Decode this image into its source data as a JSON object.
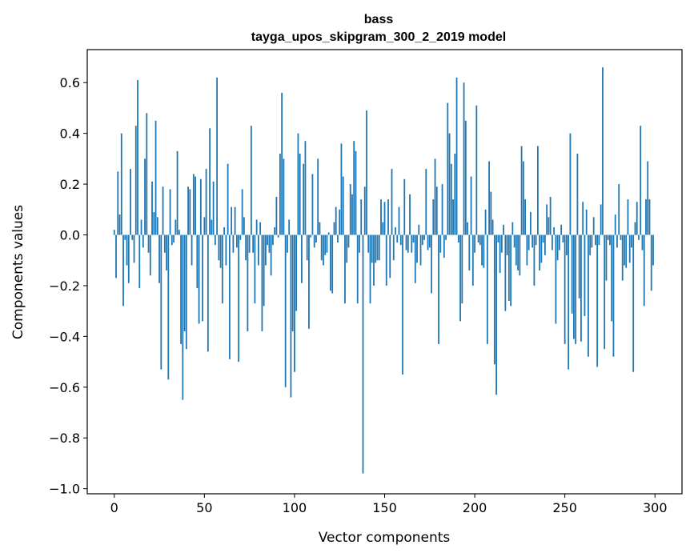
{
  "chart_data": {
    "type": "bar",
    "title_line1": "bass",
    "title_line2": "tayga_upos_skipgram_300_2_2019 model",
    "xlabel": "Vector components",
    "ylabel": "Components values",
    "xlim": [
      -15,
      315
    ],
    "ylim": [
      -1.02,
      0.73
    ],
    "xticks": [
      0,
      50,
      100,
      150,
      200,
      250,
      300
    ],
    "yticks": [
      0.6,
      0.4,
      0.2,
      0.0,
      -0.2,
      -0.4,
      -0.6,
      -0.8,
      -1.0
    ],
    "xtick_labels": [
      "0",
      "50",
      "100",
      "150",
      "200",
      "250",
      "300"
    ],
    "ytick_labels": [
      "0.6",
      "0.4",
      "0.2",
      "0.0",
      "−0.2",
      "−0.4",
      "−0.6",
      "−0.8",
      "−1.0"
    ],
    "bar_color": "#1f77b4",
    "values": [
      0.02,
      -0.17,
      0.25,
      0.08,
      0.4,
      -0.28,
      -0.02,
      -0.12,
      -0.19,
      0.26,
      -0.02,
      -0.11,
      0.43,
      0.61,
      -0.21,
      0.06,
      -0.05,
      0.3,
      0.48,
      -0.07,
      -0.16,
      0.21,
      0.09,
      0.45,
      0.07,
      -0.19,
      -0.53,
      0.19,
      -0.07,
      -0.14,
      -0.57,
      0.18,
      -0.04,
      -0.03,
      0.06,
      0.33,
      0.02,
      -0.43,
      -0.65,
      -0.38,
      -0.45,
      0.19,
      0.18,
      -0.12,
      0.24,
      0.23,
      -0.21,
      -0.35,
      0.22,
      -0.34,
      0.07,
      0.26,
      -0.46,
      0.42,
      0.06,
      0.21,
      -0.04,
      0.62,
      -0.1,
      -0.13,
      -0.27,
      0.03,
      -0.12,
      0.28,
      -0.49,
      0.11,
      -0.07,
      0.11,
      -0.05,
      -0.5,
      -0.02,
      0.18,
      0.07,
      -0.1,
      -0.38,
      -0.07,
      0.43,
      -0.07,
      -0.27,
      0.06,
      -0.12,
      0.05,
      -0.38,
      -0.28,
      -0.12,
      -0.04,
      -0.07,
      -0.16,
      -0.04,
      0.03,
      0.15,
      -0.01,
      0.32,
      0.56,
      0.3,
      -0.6,
      -0.07,
      0.06,
      -0.64,
      -0.38,
      -0.54,
      -0.3,
      0.4,
      0.32,
      -0.19,
      0.28,
      0.37,
      -0.1,
      -0.37,
      -0.01,
      0.24,
      -0.05,
      -0.03,
      0.3,
      0.05,
      -0.1,
      -0.12,
      -0.08,
      -0.07,
      0.01,
      -0.22,
      -0.23,
      0.05,
      0.11,
      -0.03,
      0.1,
      0.36,
      0.23,
      -0.27,
      -0.11,
      -0.05,
      0.2,
      0.16,
      0.37,
      0.33,
      -0.27,
      -0.07,
      0.14,
      -0.94,
      0.19,
      0.49,
      -0.07,
      -0.27,
      -0.11,
      -0.2,
      -0.11,
      -0.1,
      -0.1,
      0.14,
      0.05,
      0.13,
      -0.2,
      0.14,
      -0.17,
      0.26,
      -0.1,
      0.03,
      -0.03,
      0.11,
      -0.04,
      -0.55,
      0.22,
      -0.06,
      -0.07,
      0.16,
      -0.07,
      -0.03,
      -0.19,
      -0.11,
      0.04,
      -0.12,
      -0.04,
      -0.02,
      0.26,
      -0.06,
      -0.05,
      -0.23,
      0.14,
      0.3,
      0.19,
      -0.43,
      -0.07,
      0.2,
      -0.09,
      -0.02,
      0.52,
      0.4,
      0.28,
      0.14,
      0.32,
      0.62,
      -0.03,
      -0.34,
      -0.27,
      0.6,
      0.45,
      0.05,
      -0.14,
      0.23,
      -0.2,
      -0.07,
      0.51,
      -0.03,
      -0.04,
      -0.12,
      -0.13,
      0.1,
      -0.43,
      0.29,
      0.17,
      0.06,
      -0.51,
      -0.63,
      -0.03,
      -0.15,
      -0.07,
      0.04,
      -0.3,
      -0.08,
      -0.26,
      -0.28,
      0.05,
      -0.05,
      -0.12,
      -0.14,
      -0.16,
      0.35,
      0.29,
      0.14,
      -0.12,
      -0.06,
      0.09,
      -0.05,
      -0.2,
      -0.04,
      0.35,
      -0.14,
      -0.11,
      -0.03,
      -0.08,
      0.12,
      0.07,
      0.15,
      -0.06,
      0.03,
      -0.35,
      -0.1,
      -0.06,
      0.04,
      -0.03,
      -0.43,
      -0.08,
      -0.53,
      0.4,
      -0.31,
      -0.41,
      -0.43,
      0.32,
      -0.25,
      -0.42,
      0.13,
      -0.32,
      0.1,
      -0.48,
      -0.08,
      -0.05,
      0.07,
      -0.04,
      -0.52,
      -0.04,
      0.12,
      0.66,
      -0.45,
      -0.18,
      -0.02,
      -0.04,
      -0.34,
      -0.48,
      0.08,
      -0.05,
      0.2,
      -0.02,
      -0.18,
      -0.12,
      -0.13,
      0.14,
      -0.11,
      -0.05,
      -0.54,
      0.05,
      0.13,
      -0.02,
      0.43,
      -0.06,
      -0.28,
      0.14,
      0.29,
      0.14,
      -0.22,
      -0.12
    ]
  }
}
